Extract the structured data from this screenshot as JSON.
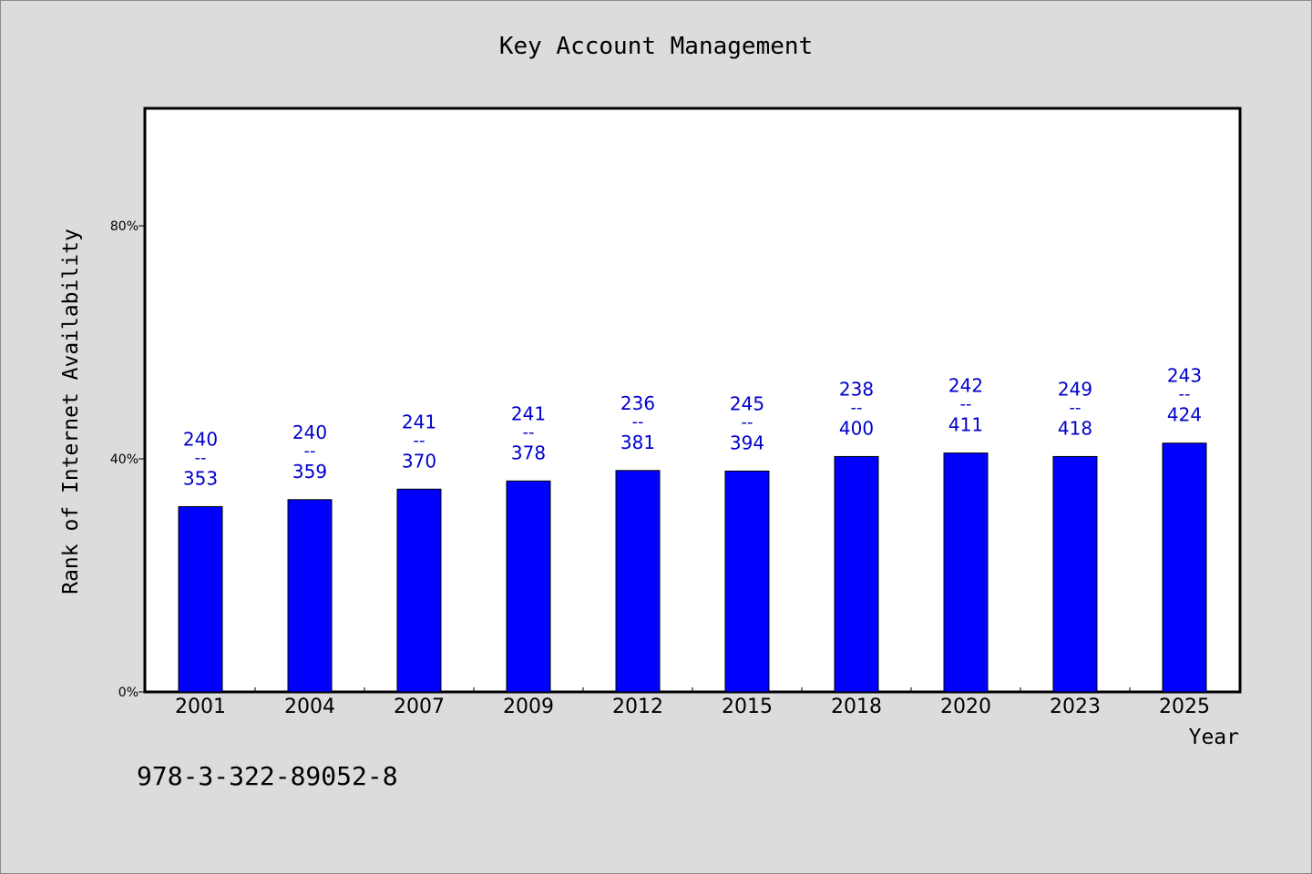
{
  "chart_data": {
    "type": "bar",
    "title": "Key Account Management",
    "xlabel": "Year",
    "ylabel": "Rank of Internet Availability",
    "categories": [
      "2001",
      "2004",
      "2007",
      "2009",
      "2012",
      "2015",
      "2018",
      "2020",
      "2023",
      "2025"
    ],
    "values": [
      31.8,
      33.0,
      34.8,
      36.2,
      38.0,
      37.9,
      40.4,
      41.0,
      40.4,
      42.7
    ],
    "data_labels": [
      {
        "top": "240",
        "mid": "--",
        "bottom": "353"
      },
      {
        "top": "240",
        "mid": "--",
        "bottom": "359"
      },
      {
        "top": "241",
        "mid": "--",
        "bottom": "370"
      },
      {
        "top": "241",
        "mid": "--",
        "bottom": "378"
      },
      {
        "top": "236",
        "mid": "--",
        "bottom": "381"
      },
      {
        "top": "245",
        "mid": "--",
        "bottom": "394"
      },
      {
        "top": "238",
        "mid": "--",
        "bottom": "400"
      },
      {
        "top": "242",
        "mid": "--",
        "bottom": "411"
      },
      {
        "top": "249",
        "mid": "--",
        "bottom": "418"
      },
      {
        "top": "243",
        "mid": "--",
        "bottom": "424"
      }
    ],
    "yticks": [
      {
        "value": 0,
        "label": "0%"
      },
      {
        "value": 40,
        "label": "40%"
      },
      {
        "value": 80,
        "label": "80%"
      }
    ],
    "ylim": [
      0,
      100
    ],
    "bar_color": "#0000ff",
    "label_color": "#0000cc",
    "grid": false,
    "legend": "none"
  },
  "footer": {
    "code": "978-3-322-89052-8"
  }
}
